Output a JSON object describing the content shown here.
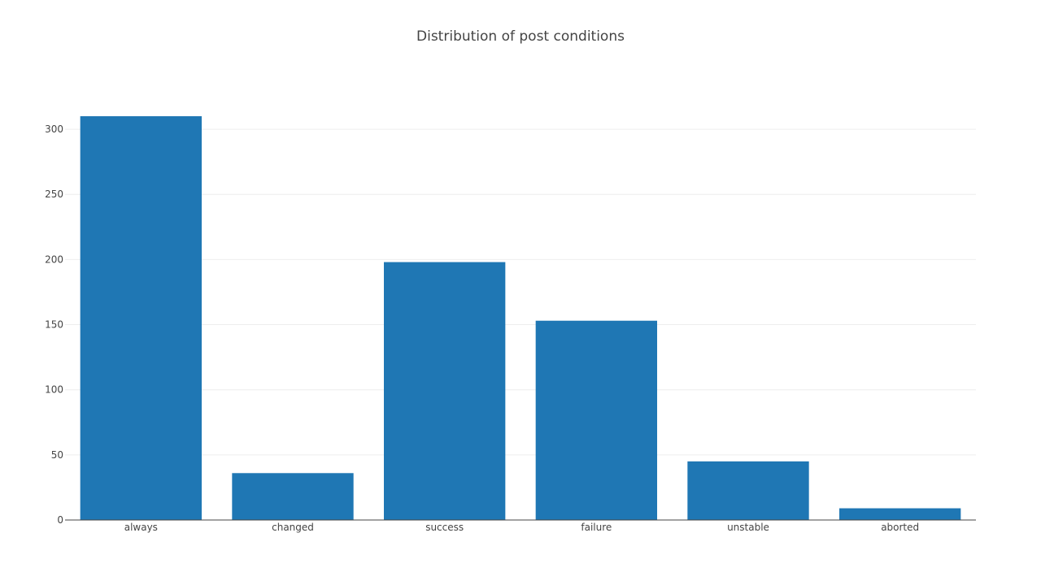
{
  "chart_data": {
    "type": "bar",
    "title": "Distribution of post conditions",
    "categories": [
      "always",
      "changed",
      "success",
      "failure",
      "unstable",
      "aborted"
    ],
    "values": [
      310,
      36,
      198,
      153,
      45,
      9
    ],
    "ylim": [
      0,
      320
    ],
    "yticks": [
      0,
      50,
      100,
      150,
      200,
      250,
      300
    ],
    "xlabel": "",
    "ylabel": "",
    "grid": true,
    "bar_color": "#1f77b4",
    "grid_color": "#eeeeee",
    "axis_color": "#444444"
  }
}
